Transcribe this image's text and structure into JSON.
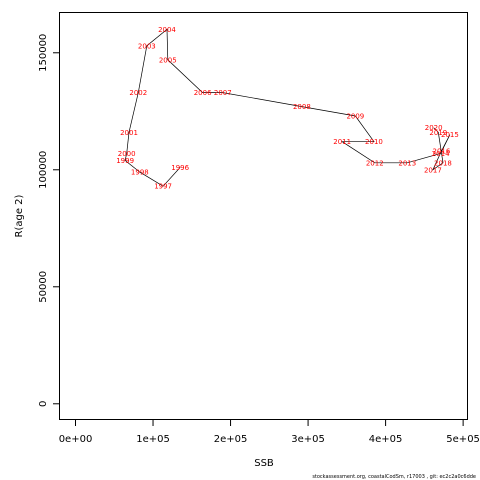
{
  "chart_data": {
    "type": "line",
    "xlabel": "SSB",
    "ylabel": "R(age 2)",
    "xlim": [
      -20000,
      505000
    ],
    "ylim": [
      -6500,
      167000
    ],
    "x_ticks": [
      0,
      100000,
      200000,
      300000,
      400000,
      500000
    ],
    "x_tick_labels": [
      "0e+00",
      "1e+05",
      "2e+05",
      "3e+05",
      "4e+05",
      "5e+05"
    ],
    "y_ticks": [
      0,
      50000,
      100000,
      150000
    ],
    "y_tick_labels": [
      "0",
      "50000",
      "100000",
      "150000"
    ],
    "label_color": "#ff0000",
    "line_color": "#000000",
    "points": [
      {
        "year": "1996",
        "x": 135000,
        "y": 101000
      },
      {
        "year": "1997",
        "x": 113000,
        "y": 93000
      },
      {
        "year": "1998",
        "x": 83000,
        "y": 99000
      },
      {
        "year": "1999",
        "x": 64000,
        "y": 104000
      },
      {
        "year": "2000",
        "x": 66000,
        "y": 107000
      },
      {
        "year": "2001",
        "x": 69000,
        "y": 116000
      },
      {
        "year": "2002",
        "x": 81000,
        "y": 133000
      },
      {
        "year": "2003",
        "x": 92000,
        "y": 153000
      },
      {
        "year": "2004",
        "x": 118000,
        "y": 160000
      },
      {
        "year": "2005",
        "x": 119000,
        "y": 147000
      },
      {
        "year": "2006",
        "x": 164000,
        "y": 133000
      },
      {
        "year": "2007",
        "x": 190000,
        "y": 133000
      },
      {
        "year": "2008",
        "x": 292000,
        "y": 127000
      },
      {
        "year": "2009",
        "x": 361000,
        "y": 123000
      },
      {
        "year": "2010",
        "x": 385000,
        "y": 112000
      },
      {
        "year": "2011",
        "x": 344000,
        "y": 112000
      },
      {
        "year": "2012",
        "x": 386000,
        "y": 103000
      },
      {
        "year": "2013",
        "x": 428000,
        "y": 103000
      },
      {
        "year": "2014",
        "x": 471000,
        "y": 107000
      },
      {
        "year": "2015",
        "x": 483000,
        "y": 115000
      },
      {
        "year": "2016",
        "x": 472000,
        "y": 108000
      },
      {
        "year": "2017",
        "x": 461000,
        "y": 100000
      },
      {
        "year": "2018",
        "x": 474000,
        "y": 103000
      },
      {
        "year": "2019",
        "x": 468000,
        "y": 116000
      },
      {
        "year": "2020",
        "x": 462000,
        "y": 118000
      }
    ]
  },
  "footer_text": "stockassessment.org, coastalCodSm, r17003 , git: ec2c2a0c6dde"
}
